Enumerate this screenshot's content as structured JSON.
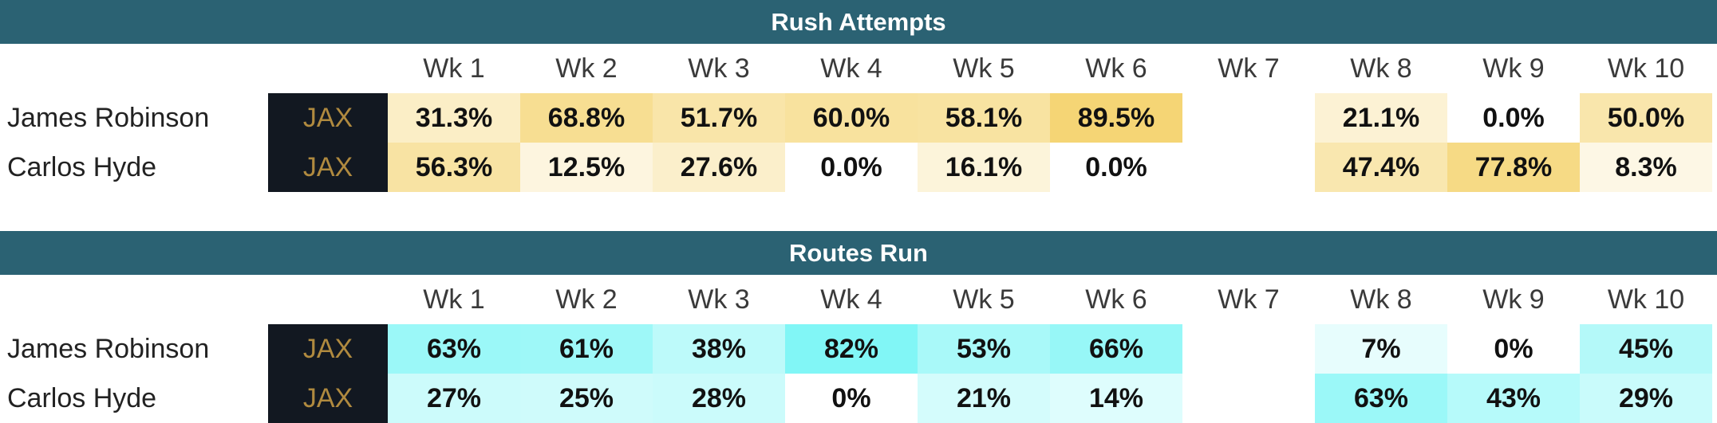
{
  "weeks": [
    "Wk 1",
    "Wk 2",
    "Wk 3",
    "Wk 4",
    "Wk 5",
    "Wk 6",
    "Wk 7",
    "Wk 8",
    "Wk 9",
    "Wk 10"
  ],
  "sections": [
    {
      "title": "Rush Attempts",
      "color": "#f2c94c",
      "rows": [
        {
          "player": "James Robinson",
          "team": "JAX",
          "values": [
            "31.3%",
            "68.8%",
            "51.7%",
            "60.0%",
            "58.1%",
            "89.5%",
            "",
            "21.1%",
            "0.0%",
            "50.0%"
          ],
          "levels": [
            31.3,
            68.8,
            51.7,
            60.0,
            58.1,
            89.5,
            null,
            21.1,
            0.0,
            50.0
          ]
        },
        {
          "player": "Carlos Hyde",
          "team": "JAX",
          "values": [
            "56.3%",
            "12.5%",
            "27.6%",
            "0.0%",
            "16.1%",
            "0.0%",
            "",
            "47.4%",
            "77.8%",
            "8.3%"
          ],
          "levels": [
            56.3,
            12.5,
            27.6,
            0.0,
            16.1,
            0.0,
            null,
            47.4,
            77.8,
            8.3
          ]
        }
      ]
    },
    {
      "title": "Routes Run",
      "color": "#4ef2f2",
      "rows": [
        {
          "player": "James Robinson",
          "team": "JAX",
          "values": [
            "63%",
            "61%",
            "38%",
            "82%",
            "53%",
            "66%",
            "",
            "7%",
            "0%",
            "45%"
          ],
          "levels": [
            63,
            61,
            38,
            82,
            53,
            66,
            null,
            7,
            0,
            45
          ]
        },
        {
          "player": "Carlos Hyde",
          "team": "JAX",
          "values": [
            "27%",
            "25%",
            "28%",
            "0%",
            "21%",
            "14%",
            "",
            "63%",
            "43%",
            "29%"
          ],
          "levels": [
            27,
            25,
            28,
            0,
            21,
            14,
            null,
            63,
            43,
            29
          ]
        }
      ]
    }
  ]
}
